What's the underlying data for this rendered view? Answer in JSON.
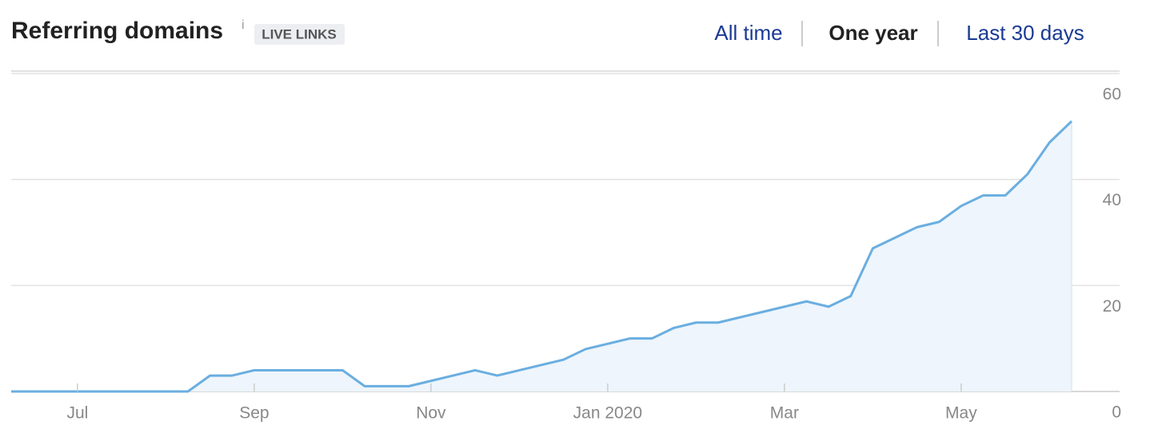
{
  "chart_data": {
    "type": "area",
    "title": "Referring domains",
    "info": "i",
    "badge": "LIVE LINKS",
    "tabs": [
      "All time",
      "One year",
      "Last 30 days"
    ],
    "active_tab": 1,
    "categories": [
      null,
      null,
      null,
      "Jul",
      null,
      null,
      null,
      null,
      null,
      null,
      null,
      "Sep",
      null,
      null,
      null,
      null,
      null,
      null,
      null,
      "Nov",
      null,
      null,
      null,
      null,
      null,
      null,
      null,
      "Jan 2020",
      null,
      null,
      null,
      null,
      null,
      null,
      null,
      "Mar",
      null,
      null,
      null,
      null,
      null,
      null,
      null,
      "May",
      null,
      null,
      null,
      null,
      null
    ],
    "values": [
      0,
      0,
      0,
      0,
      0,
      0,
      0,
      0,
      0,
      3,
      3,
      4,
      4,
      4,
      4,
      4,
      1,
      1,
      1,
      2,
      3,
      4,
      3,
      4,
      5,
      6,
      8,
      9,
      10,
      10,
      12,
      13,
      13,
      14,
      15,
      16,
      17,
      16,
      18,
      27,
      29,
      31,
      32,
      35,
      37,
      37,
      41,
      47,
      51
    ],
    "color": "#6aaee0",
    "fill": "#eef5fc",
    "ylim": [
      0,
      60
    ],
    "yticks": [
      0,
      20,
      40,
      60
    ],
    "grid": true
  }
}
